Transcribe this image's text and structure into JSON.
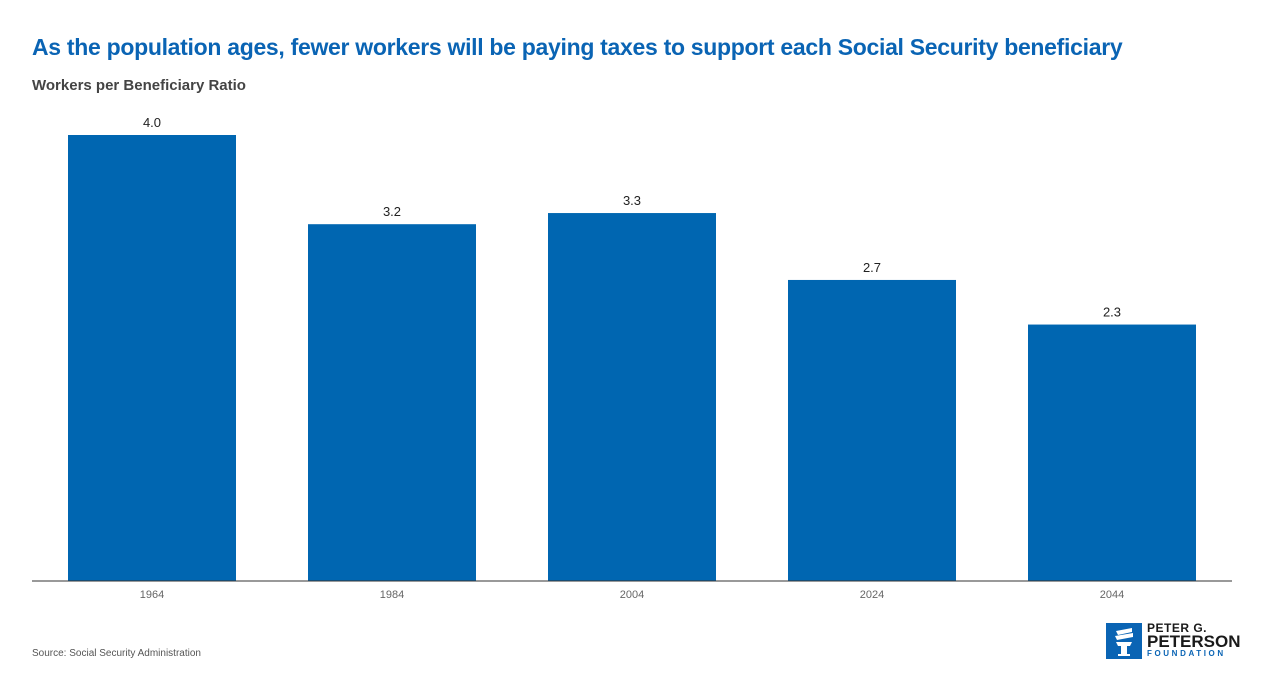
{
  "header": {
    "title": "As the population ages, fewer workers will be paying taxes to support each Social Security beneficiary",
    "subtitle": "Workers per Beneficiary Ratio"
  },
  "footer": {
    "source": "Source: Social Security Administration"
  },
  "logo": {
    "line1": "PETER G.",
    "line2": "PETERSON",
    "line3": "FOUNDATION",
    "icon": "torch-icon"
  },
  "colors": {
    "bar": "#0066b1",
    "title": "#0a64b4"
  },
  "chart_data": {
    "type": "bar",
    "title": "As the population ages, fewer workers will be paying taxes to support each Social Security beneficiary",
    "ylabel": "Workers per Beneficiary Ratio",
    "xlabel": "",
    "categories": [
      "1964",
      "1984",
      "2004",
      "2024",
      "2044"
    ],
    "values": [
      4.0,
      3.2,
      3.3,
      2.7,
      2.3
    ],
    "value_labels": [
      "4.0",
      "3.2",
      "3.3",
      "2.7",
      "2.3"
    ],
    "ylim": [
      0,
      4.0
    ],
    "grid": false,
    "legend": "none"
  }
}
